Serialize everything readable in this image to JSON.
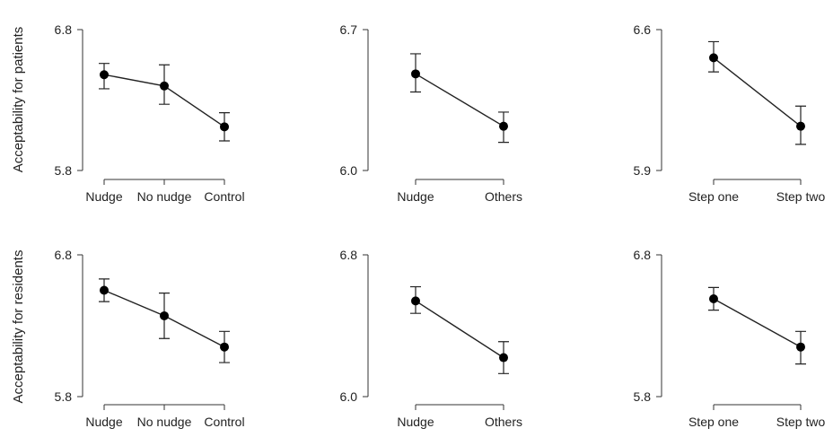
{
  "row_labels": [
    "Acceptability for patients",
    "Acceptability for residents"
  ],
  "chart_data": [
    {
      "type": "line",
      "row": 0,
      "col": 0,
      "categories": [
        "Nudge",
        "No nudge",
        "Control"
      ],
      "values": [
        6.48,
        6.4,
        6.11
      ],
      "err_low": [
        6.38,
        6.27,
        6.01
      ],
      "err_high": [
        6.56,
        6.55,
        6.21
      ],
      "ylim": [
        5.8,
        6.8
      ],
      "yticks": [
        "6.8",
        "5.8"
      ]
    },
    {
      "type": "line",
      "row": 0,
      "col": 1,
      "categories": [
        "Nudge",
        "Others"
      ],
      "values": [
        6.48,
        6.22
      ],
      "err_low": [
        6.39,
        6.14
      ],
      "err_high": [
        6.58,
        6.29
      ],
      "ylim": [
        6.0,
        6.7
      ],
      "yticks": [
        "6.7",
        "6.0"
      ]
    },
    {
      "type": "line",
      "row": 0,
      "col": 2,
      "categories": [
        "Step one",
        "Step two"
      ],
      "values": [
        6.46,
        6.12
      ],
      "err_low": [
        6.39,
        6.03
      ],
      "err_high": [
        6.54,
        6.22
      ],
      "ylim": [
        5.9,
        6.6
      ],
      "yticks": [
        "6.6",
        "5.9"
      ]
    },
    {
      "type": "line",
      "row": 1,
      "col": 0,
      "categories": [
        "Nudge",
        "No nudge",
        "Control"
      ],
      "values": [
        6.55,
        6.37,
        6.15
      ],
      "err_low": [
        6.47,
        6.21,
        6.04
      ],
      "err_high": [
        6.63,
        6.53,
        6.26
      ],
      "ylim": [
        5.8,
        6.8
      ],
      "yticks": [
        "6.8",
        "5.8"
      ]
    },
    {
      "type": "line",
      "row": 1,
      "col": 1,
      "categories": [
        "Nudge",
        "Others"
      ],
      "values": [
        6.54,
        6.22
      ],
      "err_low": [
        6.47,
        6.13
      ],
      "err_high": [
        6.62,
        6.31
      ],
      "ylim": [
        6.0,
        6.8
      ],
      "yticks": [
        "6.8",
        "6.0"
      ]
    },
    {
      "type": "line",
      "row": 1,
      "col": 2,
      "categories": [
        "Step one",
        "Step two"
      ],
      "values": [
        6.49,
        6.15
      ],
      "err_low": [
        6.41,
        6.03
      ],
      "err_high": [
        6.57,
        6.26
      ],
      "ylim": [
        5.8,
        6.8
      ],
      "yticks": [
        "6.8",
        "5.8"
      ]
    }
  ]
}
